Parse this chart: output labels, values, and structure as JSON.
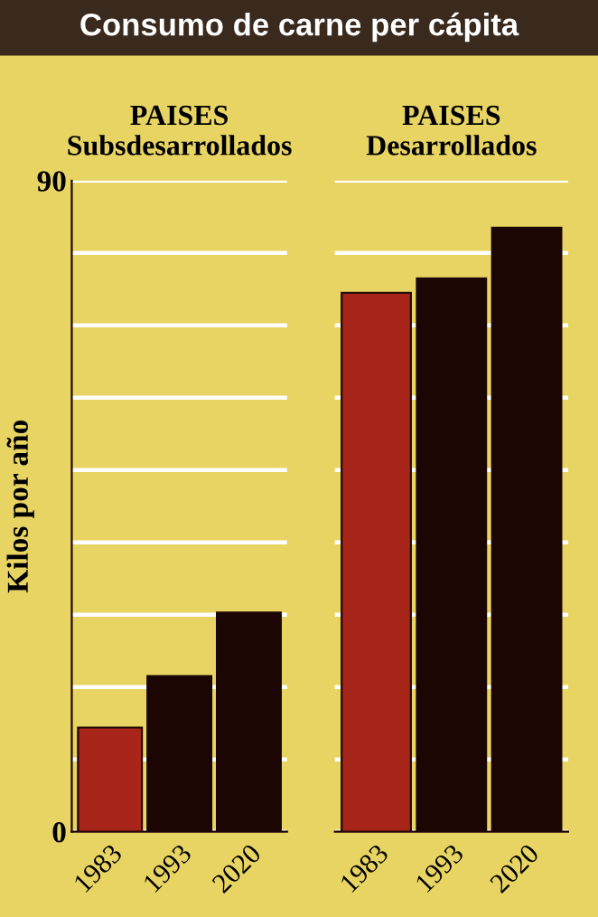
{
  "chart_data": [
    {
      "type": "bar",
      "title": "Consumo de carne per cápita",
      "subtitle": "PAISES\nSubsdesarrollados",
      "ylabel": "Kilos por año",
      "categories": [
        "1983",
        "1993",
        "2020"
      ],
      "values": [
        14.4,
        21.5,
        30.3
      ],
      "colors": [
        "#a8251a",
        "#1c0604",
        "#1c0604"
      ],
      "ylim": [
        0,
        90
      ],
      "yticks": [
        0,
        {
          "value": 10,
          "label": null
        },
        {
          "value": 20,
          "label": null
        },
        {
          "value": 30,
          "label": null
        },
        {
          "value": 40,
          "label": null
        },
        {
          "value": 50,
          "label": null
        },
        {
          "value": 60,
          "label": null
        },
        {
          "value": 70,
          "label": null
        },
        {
          "value": 80,
          "label": null
        },
        90
      ],
      "grid": "y"
    },
    {
      "type": "bar",
      "subtitle": "PAISES\nDesarrollados",
      "categories": [
        "1983",
        "1993",
        "2020"
      ],
      "values": [
        74.5,
        76.5,
        83.5
      ],
      "colors": [
        "#a8251a",
        "#1c0604",
        "#1c0604"
      ],
      "ylim": [
        0,
        90
      ],
      "yticks": [
        0,
        {
          "value": 10,
          "label": null
        },
        {
          "value": 20,
          "label": null
        },
        {
          "value": 30,
          "label": null
        },
        {
          "value": 40,
          "label": null
        },
        {
          "value": 50,
          "label": null
        },
        {
          "value": 60,
          "label": null
        },
        {
          "value": 70,
          "label": null
        },
        {
          "value": 80,
          "label": null
        },
        90
      ],
      "grid": "y",
      "tick_labels": "x"
    }
  ]
}
